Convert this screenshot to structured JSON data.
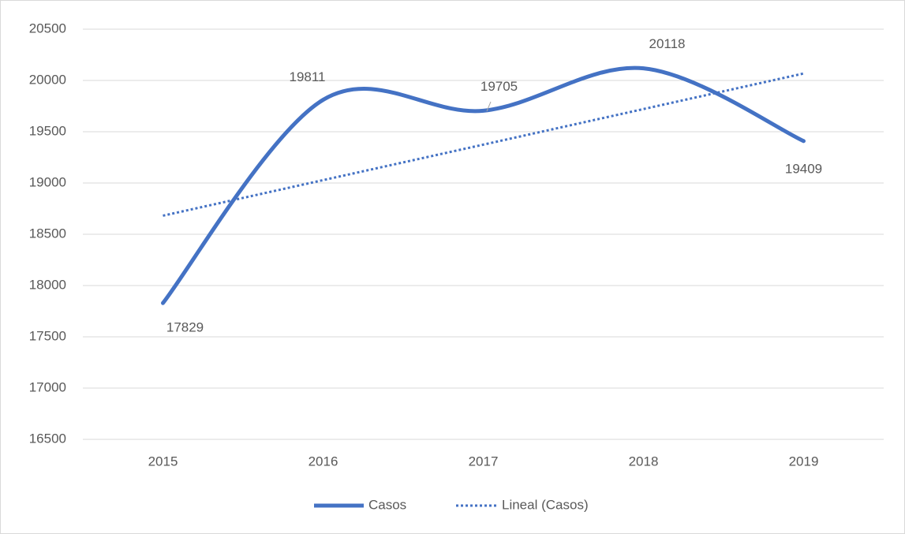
{
  "chart_data": {
    "type": "line",
    "categories": [
      "2015",
      "2016",
      "2017",
      "2018",
      "2019"
    ],
    "series": [
      {
        "name": "Casos",
        "color": "#4472c4",
        "values": [
          17829,
          19811,
          19705,
          20118,
          19409
        ],
        "smooth": true
      },
      {
        "name": "Lineal (Casos)",
        "color": "#4472c4",
        "values": [
          18681,
          19028,
          19374,
          19721,
          20068
        ],
        "dotted": true
      }
    ],
    "ylim": [
      16500,
      20500
    ],
    "yticks": [
      16500,
      17000,
      17500,
      18000,
      18500,
      19000,
      19500,
      20000,
      20500
    ],
    "grid": true,
    "legend": "bottom"
  }
}
